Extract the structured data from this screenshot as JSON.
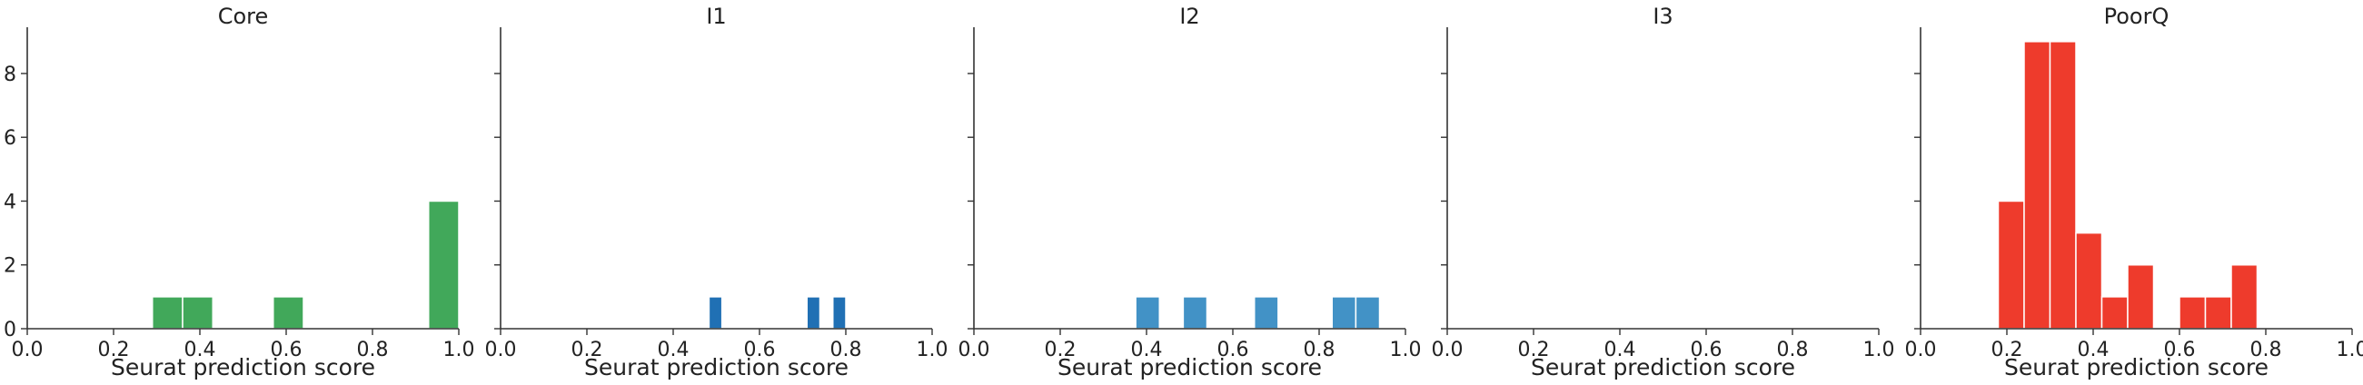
{
  "chart_data": [
    {
      "type": "bar",
      "title": "Core",
      "xlabel": "Seurat prediction score",
      "ylabel": "",
      "xlim": [
        0,
        1
      ],
      "ylim": [
        0,
        9.45
      ],
      "xticks": [
        "0.0",
        "0.2",
        "0.4",
        "0.6",
        "0.8",
        "1.0"
      ],
      "yticks": [
        "0",
        "2",
        "4",
        "6",
        "8"
      ],
      "color": "#41a85a",
      "bins": [
        {
          "x0": 0.29,
          "x1": 0.36,
          "count": 1
        },
        {
          "x0": 0.36,
          "x1": 0.43,
          "count": 1
        },
        {
          "x0": 0.57,
          "x1": 0.64,
          "count": 1
        },
        {
          "x0": 0.93,
          "x1": 1.0,
          "count": 4
        }
      ]
    },
    {
      "type": "bar",
      "title": "I1",
      "xlabel": "Seurat prediction score",
      "ylabel": "",
      "xlim": [
        0,
        1
      ],
      "ylim": [
        0,
        9.45
      ],
      "xticks": [
        "0.0",
        "0.2",
        "0.4",
        "0.6",
        "0.8",
        "1.0"
      ],
      "yticks": [
        "",
        "",
        "",
        "",
        ""
      ],
      "color": "#2070b4",
      "bins": [
        {
          "x0": 0.483,
          "x1": 0.513,
          "count": 1
        },
        {
          "x0": 0.71,
          "x1": 0.74,
          "count": 1
        },
        {
          "x0": 0.77,
          "x1": 0.8,
          "count": 1
        }
      ]
    },
    {
      "type": "bar",
      "title": "I2",
      "xlabel": "Seurat prediction score",
      "ylabel": "",
      "xlim": [
        0,
        1
      ],
      "ylim": [
        0,
        9.45
      ],
      "xticks": [
        "0.0",
        "0.2",
        "0.4",
        "0.6",
        "0.8",
        "1.0"
      ],
      "yticks": [
        "",
        "",
        "",
        "",
        ""
      ],
      "color": "#4292c6",
      "bins": [
        {
          "x0": 0.375,
          "x1": 0.43,
          "count": 1
        },
        {
          "x0": 0.485,
          "x1": 0.54,
          "count": 1
        },
        {
          "x0": 0.65,
          "x1": 0.705,
          "count": 1
        },
        {
          "x0": 0.83,
          "x1": 0.885,
          "count": 1
        },
        {
          "x0": 0.885,
          "x1": 0.94,
          "count": 1
        }
      ]
    },
    {
      "type": "bar",
      "title": "I3",
      "xlabel": "Seurat prediction score",
      "ylabel": "",
      "xlim": [
        0,
        1
      ],
      "ylim": [
        0,
        9.45
      ],
      "xticks": [
        "0.0",
        "0.2",
        "0.4",
        "0.6",
        "0.8",
        "1.0"
      ],
      "yticks": [
        "",
        "",
        "",
        "",
        ""
      ],
      "color": "#888888",
      "bins": []
    },
    {
      "type": "bar",
      "title": "PoorQ",
      "xlabel": "Seurat prediction score",
      "ylabel": "",
      "xlim": [
        0,
        1
      ],
      "ylim": [
        0,
        9.45
      ],
      "xticks": [
        "0.0",
        "0.2",
        "0.4",
        "0.6",
        "0.8",
        "1.0"
      ],
      "yticks": [
        "",
        "",
        "",
        "",
        ""
      ],
      "color": "#ee3b2c",
      "bins": [
        {
          "x0": 0.18,
          "x1": 0.24,
          "count": 4
        },
        {
          "x0": 0.24,
          "x1": 0.3,
          "count": 9
        },
        {
          "x0": 0.3,
          "x1": 0.36,
          "count": 9
        },
        {
          "x0": 0.36,
          "x1": 0.42,
          "count": 3
        },
        {
          "x0": 0.42,
          "x1": 0.48,
          "count": 1
        },
        {
          "x0": 0.48,
          "x1": 0.54,
          "count": 2
        },
        {
          "x0": 0.6,
          "x1": 0.66,
          "count": 1
        },
        {
          "x0": 0.66,
          "x1": 0.72,
          "count": 1
        },
        {
          "x0": 0.72,
          "x1": 0.78,
          "count": 2
        }
      ]
    }
  ]
}
